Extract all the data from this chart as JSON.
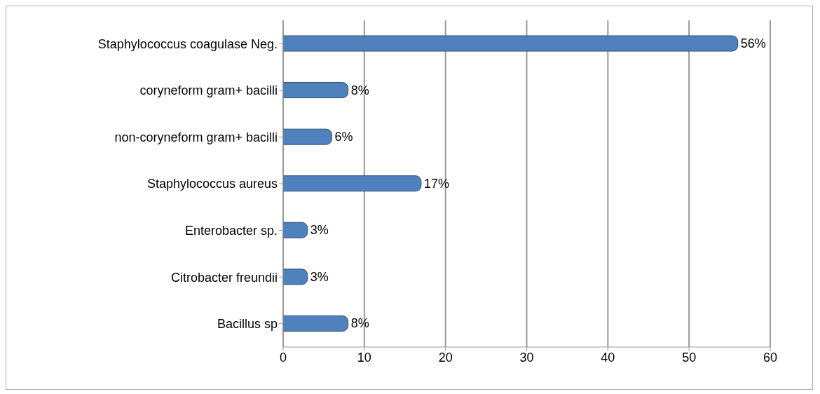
{
  "chart_data": {
    "type": "bar",
    "orientation": "horizontal",
    "categories": [
      "Staphylococcus coagulase Neg.",
      "coryneform gram+ bacilli",
      "non-coryneform gram+ bacilli",
      "Staphylococcus aureus",
      "Enterobacter sp.",
      "Citrobacter freundii",
      "Bacillus sp"
    ],
    "values": [
      56,
      8,
      6,
      17,
      3,
      3,
      8
    ],
    "value_labels": [
      "56%",
      "8%",
      "6%",
      "17%",
      "3%",
      "3%",
      "8%"
    ],
    "color": "#4f81bd",
    "xlim": [
      0,
      60
    ],
    "xticks": [
      0,
      10,
      20,
      30,
      40,
      50,
      60
    ],
    "grid": "x"
  }
}
